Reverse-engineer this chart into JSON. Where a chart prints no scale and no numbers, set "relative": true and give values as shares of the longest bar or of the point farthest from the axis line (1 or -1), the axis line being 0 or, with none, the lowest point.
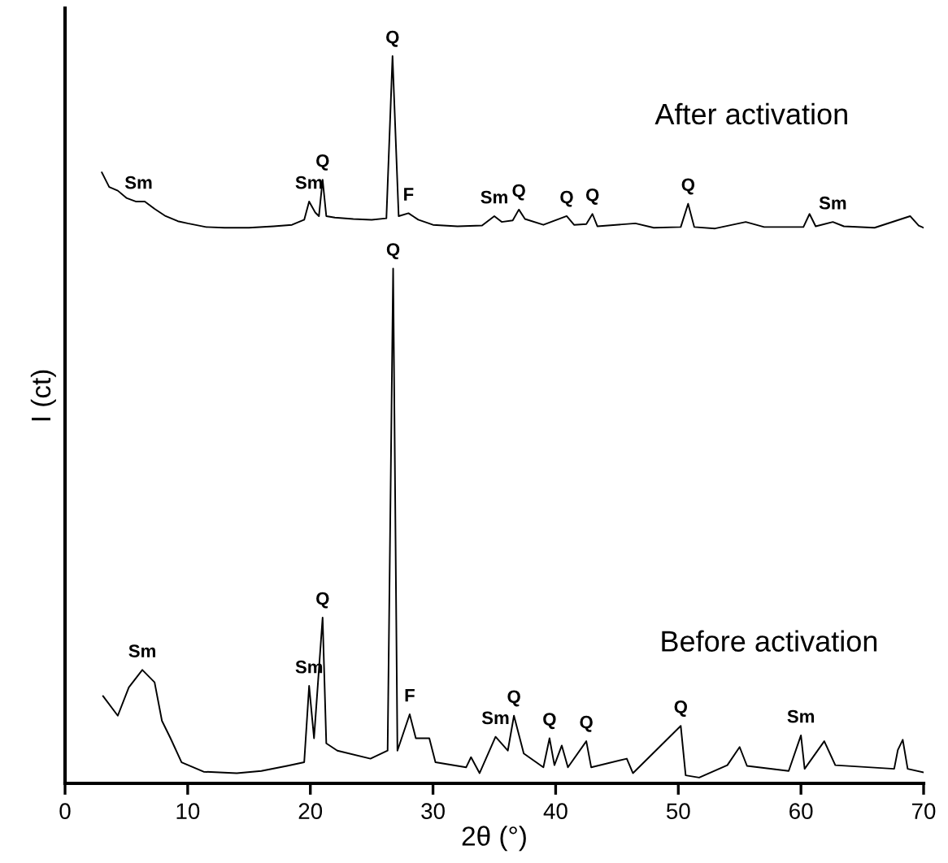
{
  "chart_data": {
    "type": "line",
    "relative": true,
    "xlabel": "2θ (°)",
    "ylabel": "I (ct)",
    "xlim": [
      0,
      70
    ],
    "xticks": [
      0,
      10,
      20,
      30,
      40,
      50,
      60,
      70
    ],
    "grid": false,
    "legend": false,
    "marker": "none",
    "line_style": "solid",
    "series": [
      {
        "name": "After activation",
        "color": "#000000",
        "x": [
          3.0,
          3.6,
          4.3,
          5.0,
          5.8,
          6.5,
          7.3,
          8.2,
          9.2,
          10.0,
          11.5,
          13,
          15,
          17,
          18.5,
          19.5,
          19.9,
          20.4,
          20.7,
          21.0,
          21.3,
          22,
          23.5,
          25,
          26.2,
          26.7,
          27.2,
          28.0,
          28.8,
          30,
          32,
          34,
          35.0,
          35.6,
          36.5,
          37.0,
          37.5,
          39,
          40.9,
          41.5,
          42.5,
          43.0,
          43.4,
          46.5,
          48,
          50.2,
          50.8,
          51.3,
          53,
          55.5,
          57,
          60.2,
          60.7,
          61.2,
          62.6,
          63.5,
          66,
          68.9,
          69.6,
          70.0
        ],
        "values": [
          0.84,
          0.82,
          0.815,
          0.805,
          0.8,
          0.8,
          0.79,
          0.78,
          0.773,
          0.77,
          0.765,
          0.764,
          0.764,
          0.766,
          0.768,
          0.775,
          0.8,
          0.785,
          0.78,
          0.83,
          0.78,
          0.778,
          0.776,
          0.775,
          0.777,
          1.0,
          0.78,
          0.784,
          0.775,
          0.768,
          0.766,
          0.767,
          0.78,
          0.772,
          0.774,
          0.789,
          0.776,
          0.768,
          0.78,
          0.768,
          0.769,
          0.783,
          0.766,
          0.77,
          0.764,
          0.765,
          0.797,
          0.765,
          0.763,
          0.772,
          0.765,
          0.765,
          0.783,
          0.766,
          0.772,
          0.766,
          0.764,
          0.78,
          0.767,
          0.764
        ]
      },
      {
        "name": "Before activation",
        "color": "#000000",
        "x": [
          3.1,
          4.3,
          5.2,
          6.3,
          7.3,
          7.9,
          8.6,
          9.5,
          11.3,
          14,
          16,
          18.1,
          19.5,
          19.9,
          20.3,
          21.0,
          21.3,
          22.2,
          24.9,
          26.3,
          26.75,
          27.1,
          28.1,
          28.6,
          29.7,
          30.2,
          32.7,
          33.1,
          33.8,
          35.1,
          36.1,
          36.6,
          37.4,
          39.0,
          39.5,
          39.9,
          40.5,
          41.0,
          42.5,
          42.9,
          45.8,
          46.3,
          50.2,
          50.6,
          51.7,
          54.0,
          55.0,
          55.6,
          59.0,
          60.0,
          60.3,
          61.9,
          62.8,
          67.6,
          67.9,
          68.3,
          68.7,
          70.0
        ],
        "values": [
          0.12,
          0.093,
          0.132,
          0.156,
          0.139,
          0.086,
          0.062,
          0.029,
          0.016,
          0.014,
          0.017,
          0.024,
          0.029,
          0.134,
          0.062,
          0.228,
          0.055,
          0.045,
          0.034,
          0.045,
          0.708,
          0.045,
          0.095,
          0.062,
          0.062,
          0.029,
          0.022,
          0.036,
          0.014,
          0.064,
          0.045,
          0.093,
          0.041,
          0.022,
          0.062,
          0.025,
          0.052,
          0.022,
          0.058,
          0.022,
          0.034,
          0.014,
          0.079,
          0.011,
          0.008,
          0.025,
          0.05,
          0.024,
          0.017,
          0.066,
          0.02,
          0.058,
          0.025,
          0.02,
          0.046,
          0.06,
          0.02,
          0.015
        ]
      }
    ],
    "annotations": [
      {
        "text": "Sm",
        "x": 6,
        "y": 0.8
      },
      {
        "text": "Sm",
        "x": 19.9,
        "y": 0.8
      },
      {
        "text": "Q",
        "x": 21.0,
        "y": 0.83
      },
      {
        "text": "Q",
        "x": 26.7,
        "y": 1.0
      },
      {
        "text": "F",
        "x": 28.0,
        "y": 0.784
      },
      {
        "text": "Sm",
        "x": 35.0,
        "y": 0.78
      },
      {
        "text": "Q",
        "x": 37.0,
        "y": 0.789
      },
      {
        "text": "Q",
        "x": 40.9,
        "y": 0.78
      },
      {
        "text": "Q",
        "x": 43.0,
        "y": 0.783
      },
      {
        "text": "Q",
        "x": 50.8,
        "y": 0.797
      },
      {
        "text": "Sm",
        "x": 62.6,
        "y": 0.772
      },
      {
        "text": "Sm",
        "x": 6.3,
        "y": 0.156
      },
      {
        "text": "Sm",
        "x": 19.9,
        "y": 0.134
      },
      {
        "text": "Q",
        "x": 21.0,
        "y": 0.228
      },
      {
        "text": "Q",
        "x": 26.75,
        "y": 0.708
      },
      {
        "text": "F",
        "x": 28.1,
        "y": 0.095
      },
      {
        "text": "Sm",
        "x": 35.1,
        "y": 0.064
      },
      {
        "text": "Q",
        "x": 36.6,
        "y": 0.093
      },
      {
        "text": "Q",
        "x": 39.5,
        "y": 0.062
      },
      {
        "text": "Q",
        "x": 42.5,
        "y": 0.058
      },
      {
        "text": "Q",
        "x": 50.2,
        "y": 0.079
      },
      {
        "text": "Sm",
        "x": 60.0,
        "y": 0.066
      }
    ]
  }
}
